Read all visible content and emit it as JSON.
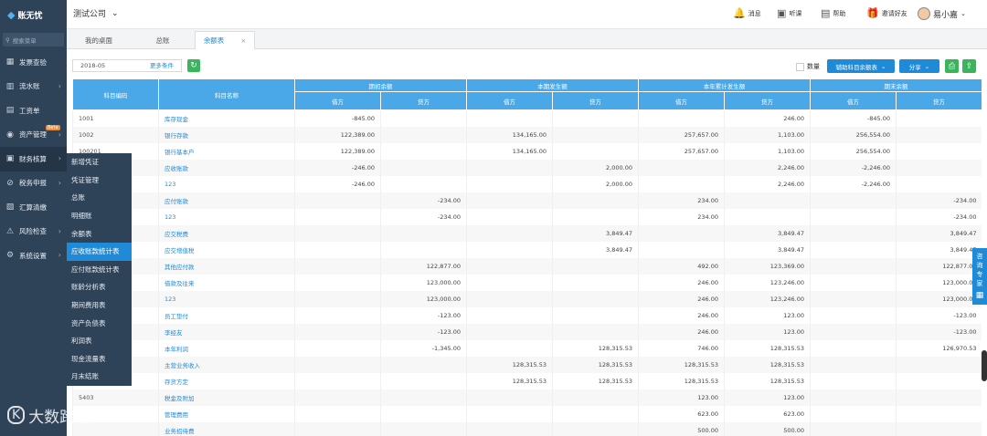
{
  "app": {
    "logo_text": "账无忧",
    "company": "测试公司"
  },
  "header_actions": [
    {
      "label": "消息",
      "icon": "bell-icon"
    },
    {
      "label": "听课",
      "icon": "video-icon"
    },
    {
      "label": "帮助",
      "icon": "help-doc-icon"
    },
    {
      "label": "邀请好友",
      "icon": "gift-icon"
    }
  ],
  "user": {
    "name": "易小嘉"
  },
  "sidebar": {
    "search_placeholder": "搜索菜单",
    "items": [
      {
        "label": "发票查验",
        "icon": "invoice-icon"
      },
      {
        "label": "流水账",
        "icon": "ledger-icon"
      },
      {
        "label": "工资单",
        "icon": "payroll-icon"
      },
      {
        "label": "资产管理",
        "icon": "asset-icon",
        "badge": "Beta"
      },
      {
        "label": "财务核算",
        "icon": "accounting-icon"
      },
      {
        "label": "税务申报",
        "icon": "tax-icon"
      },
      {
        "label": "汇算清缴",
        "icon": "settlement-icon"
      },
      {
        "label": "风险检查",
        "icon": "risk-icon"
      },
      {
        "label": "系统设置",
        "icon": "gear-icon"
      }
    ]
  },
  "submenu": {
    "items": [
      "新增凭证",
      "凭证管理",
      "总账",
      "明细账",
      "余额表",
      "应收账款统计表",
      "应付账款统计表",
      "账龄分析表",
      "期间费用表",
      "资产负债表",
      "利润表",
      "现金流量表",
      "月末结账"
    ],
    "active_index": 5
  },
  "tabs": [
    {
      "label": "我的桌面"
    },
    {
      "label": "总账"
    },
    {
      "label": "余额表",
      "closable": true
    }
  ],
  "toolbar": {
    "date_value": "2018-05",
    "more_conditions": "更多条件",
    "qty_label": "数量",
    "aux_button": "辅助科目余额表",
    "share_button": "分享"
  },
  "table": {
    "col_code": "科目编码",
    "col_name": "科目名称",
    "groups": [
      "期初余额",
      "本期发生额",
      "本年累计发生额",
      "期末余额"
    ],
    "debit": "借方",
    "credit": "贷方",
    "rows": [
      [
        "1001",
        "库存现金",
        "-845.00",
        "",
        "",
        "",
        "",
        "246.00",
        "-845.00",
        ""
      ],
      [
        "1002",
        "银行存款",
        "122,389.00",
        "",
        "134,165.00",
        "",
        "257,657.00",
        "1,103.00",
        "256,554.00",
        ""
      ],
      [
        "100201",
        "银行基本户",
        "122,389.00",
        "",
        "134,165.00",
        "",
        "257,657.00",
        "1,103.00",
        "256,554.00",
        ""
      ],
      [
        "",
        "应收账款",
        "-246.00",
        "",
        "",
        "2,000.00",
        "",
        "2,246.00",
        "-2,246.00",
        ""
      ],
      [
        "",
        "123",
        "-246.00",
        "",
        "",
        "2,000.00",
        "",
        "2,246.00",
        "-2,246.00",
        ""
      ],
      [
        "",
        "应付账款",
        "",
        "-234.00",
        "",
        "",
        "234.00",
        "",
        "",
        "-234.00"
      ],
      [
        "",
        "123",
        "",
        "-234.00",
        "",
        "",
        "234.00",
        "",
        "",
        "-234.00"
      ],
      [
        "",
        "应交税费",
        "",
        "",
        "",
        "3,849.47",
        "",
        "3,849.47",
        "",
        "3,849.47"
      ],
      [
        "",
        "应交增值税",
        "",
        "",
        "",
        "3,849.47",
        "",
        "3,849.47",
        "",
        "3,849.47"
      ],
      [
        "",
        "其他应付款",
        "",
        "122,877.00",
        "",
        "",
        "492.00",
        "123,369.00",
        "",
        "122,877.00"
      ],
      [
        "",
        "借款及往来",
        "",
        "123,000.00",
        "",
        "",
        "246.00",
        "123,246.00",
        "",
        "123,000.00"
      ],
      [
        "",
        "123",
        "",
        "123,000.00",
        "",
        "",
        "246.00",
        "123,246.00",
        "",
        "123,000.00"
      ],
      [
        "",
        "员工垫付",
        "",
        "-123.00",
        "",
        "",
        "246.00",
        "123.00",
        "",
        "-123.00"
      ],
      [
        "",
        "李经友",
        "",
        "-123.00",
        "",
        "",
        "246.00",
        "123.00",
        "",
        "-123.00"
      ],
      [
        "",
        "本年利润",
        "",
        "-1,345.00",
        "",
        "128,315.53",
        "746.00",
        "128,315.53",
        "",
        "126,970.53"
      ],
      [
        "",
        "主营业务收入",
        "",
        "",
        "128,315.53",
        "128,315.53",
        "128,315.53",
        "128,315.53",
        "",
        ""
      ],
      [
        "",
        "存货方定",
        "",
        "",
        "128,315.53",
        "128,315.53",
        "128,315.53",
        "128,315.53",
        "",
        ""
      ],
      [
        "5403",
        "税金及附加",
        "",
        "",
        "",
        "",
        "123.00",
        "123.00",
        "",
        ""
      ],
      [
        "",
        "管理费用",
        "",
        "",
        "",
        "",
        "623.00",
        "623.00",
        "",
        ""
      ],
      [
        "",
        "业务招待费",
        "",
        "",
        "",
        "",
        "500.00",
        "500.00",
        "",
        ""
      ]
    ]
  },
  "side_float": {
    "text": "咨询专家"
  },
  "watermark": {
    "text": "大数跨境"
  }
}
